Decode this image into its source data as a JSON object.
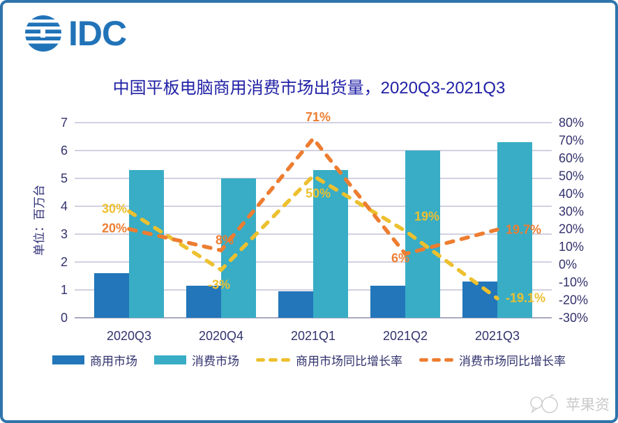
{
  "logo": {
    "text": "IDC"
  },
  "watermark": {
    "text": "苹果资"
  },
  "chart_data": {
    "type": "combo-bar-line",
    "title": "中国平板电脑商用消费市场出货量，2020Q3-2021Q3",
    "categories": [
      "2020Q3",
      "2020Q4",
      "2021Q1",
      "2021Q2",
      "2021Q3"
    ],
    "left_axis": {
      "title": "单位：百万台",
      "min": 0,
      "max": 7,
      "step": 1
    },
    "right_axis": {
      "min": -30,
      "max": 80,
      "step": 10,
      "suffix": "%"
    },
    "bar_series": [
      {
        "name": "商用市场",
        "color": "#2276b9",
        "values": [
          1.6,
          1.15,
          0.95,
          1.15,
          1.3
        ]
      },
      {
        "name": "消费市场",
        "color": "#38adc5",
        "values": [
          5.3,
          5.0,
          5.3,
          6.0,
          6.3
        ]
      }
    ],
    "line_series": [
      {
        "name": "商用市场同比增长率",
        "color": "#edc02f",
        "values": [
          30,
          -3,
          50,
          19,
          -19.1
        ],
        "labels": [
          "30%",
          "-3%",
          "50%",
          "19%",
          "-19.1%"
        ]
      },
      {
        "name": "消费市场同比增长率",
        "color": "#ed7d31",
        "values": [
          20,
          8,
          71,
          6,
          19.7
        ],
        "labels": [
          "20%",
          "8%",
          "71%",
          "6%",
          "19.7%"
        ]
      }
    ],
    "legend_position": "bottom",
    "grid": true,
    "colors": {
      "border": "#2e74ab",
      "logo": "#2173b8",
      "title": "#2121a6",
      "axis_text": "#32326e",
      "gridline": "#c2c2d8",
      "watermark": "#c9c9c9"
    }
  }
}
